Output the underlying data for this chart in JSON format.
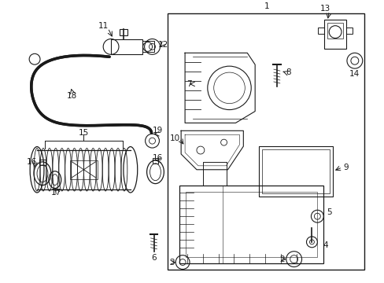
{
  "bg_color": "#ffffff",
  "line_color": "#1a1a1a",
  "fs": 7.5,
  "fig_width": 4.89,
  "fig_height": 3.6,
  "dpi": 100
}
